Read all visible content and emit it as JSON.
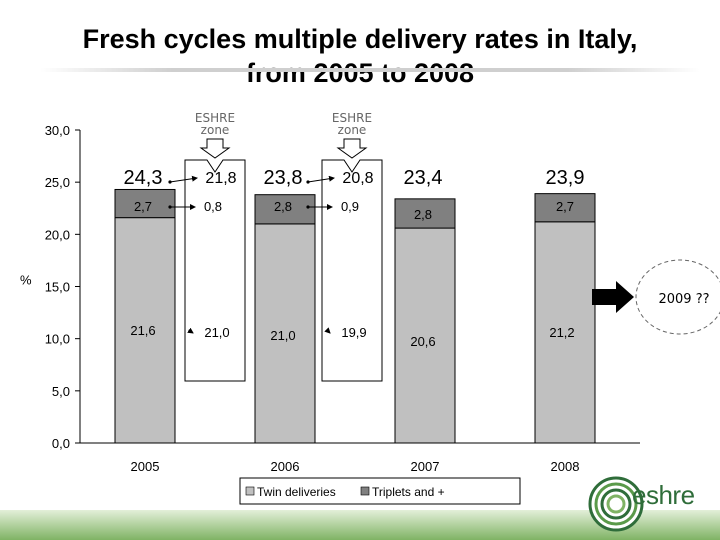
{
  "header": {
    "title_line1": "Fresh cycles multiple delivery rates in Italy,",
    "title_line2": "from 2005 to 2008"
  },
  "colors": {
    "twin": "#c0c0c0",
    "triplets": "#808080",
    "band_start": "#e3efd9",
    "band_end": "#7fb364",
    "logo": "#2f6d3a"
  },
  "chart_data": {
    "type": "bar",
    "stacked": true,
    "categories": [
      "2005",
      "2006",
      "2007",
      "2008"
    ],
    "series": [
      {
        "name": "Twin deliveries",
        "values": [
          21.6,
          21.0,
          20.6,
          21.2
        ],
        "color": "#c0c0c0"
      },
      {
        "name": "Triplets and +",
        "values": [
          2.7,
          2.8,
          2.8,
          2.7
        ],
        "color": "#808080"
      }
    ],
    "totals": [
      "24,3",
      "23,8",
      "23,4",
      "23,9"
    ],
    "twin_labels": [
      "21,6",
      "21,0",
      "20,6",
      "21,2"
    ],
    "triplet_labels": [
      "2,7",
      "2,8",
      "2,8",
      "2,7"
    ],
    "eshre_zones": [
      {
        "label": "ESHRE zone",
        "total": "21,8",
        "triplets": "0,8",
        "twins": "21,0"
      },
      {
        "label": "ESHRE zone",
        "total": "20,8",
        "triplets": "0,9",
        "twins": "19,9"
      }
    ],
    "ylabel": "%",
    "ylim": [
      0,
      30
    ],
    "yticks": [
      "0,0",
      "5,0",
      "10,0",
      "15,0",
      "20,0",
      "25,0",
      "30,0"
    ],
    "legend_position": "bottom",
    "annotation": "2009 ??"
  },
  "logo": {
    "word": "eshre",
    "sub_line1": "",
    "sub_line2": ""
  }
}
